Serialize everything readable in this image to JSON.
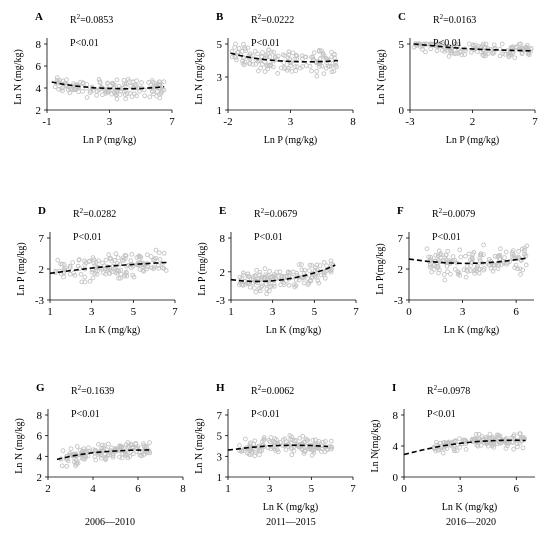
{
  "chart_data": [
    {
      "type": "scatter",
      "panel_letter": "A",
      "r2": "R²=0.0853",
      "r2_base": "R",
      "r2_sup": "2",
      "r2_value": "=0.0853",
      "p": "P<0.01",
      "xlabel": "Ln P (mg/kg)",
      "ylabel": "Ln  N (mg/kg)",
      "xlim": [
        -1,
        7
      ],
      "ylim": [
        2,
        8
      ],
      "xticks": [
        "-1",
        "3",
        "7"
      ],
      "yticks": [
        "2",
        "4",
        "6",
        "8"
      ],
      "xrange": [
        -0.7,
        6.5
      ],
      "ycenter": 4.0,
      "yspread": 0.55,
      "trend_x": [
        -0.7,
        0,
        1,
        2,
        3,
        4,
        5,
        6,
        6.5
      ],
      "trend_y": [
        4.55,
        4.35,
        4.15,
        4.02,
        3.96,
        3.93,
        3.95,
        4.05,
        4.12
      ]
    },
    {
      "type": "scatter",
      "panel_letter": "B",
      "r2": "R²=0.0222",
      "r2_base": "R",
      "r2_sup": "2",
      "r2_value": "=0.0222",
      "p": "P<0.01",
      "xlabel": "Ln P (mg/kg)",
      "ylabel": "Ln  N (mg/kg)",
      "xlim": [
        -2,
        8
      ],
      "ylim": [
        1,
        5
      ],
      "xticks": [
        "-2",
        "3",
        "8"
      ],
      "yticks": [
        "1",
        "3",
        "5"
      ],
      "xrange": [
        -1.8,
        6.8
      ],
      "ycenter": 3.9,
      "yspread": 0.5,
      "trend_x": [
        -1.8,
        -1,
        0,
        1,
        2,
        3,
        4,
        5,
        6,
        6.8
      ],
      "trend_y": [
        4.45,
        4.3,
        4.15,
        4.05,
        3.98,
        3.94,
        3.92,
        3.92,
        3.95,
        4.0
      ]
    },
    {
      "type": "scatter",
      "panel_letter": "C",
      "r2": "R²=0.0163",
      "r2_base": "R",
      "r2_sup": "2",
      "r2_value": "=0.0163",
      "p": "P<0.01",
      "xlabel": "Ln P (mg/kg)",
      "ylabel": "Ln  N (mg/kg)",
      "xlim": [
        -3,
        7
      ],
      "ylim": [
        0,
        5
      ],
      "xticks": [
        "-3",
        "2",
        "7"
      ],
      "yticks": [
        "0",
        "5"
      ],
      "xrange": [
        -2.7,
        6.7
      ],
      "ycenter": 4.6,
      "yspread": 0.4,
      "trend_x": [
        -2.7,
        -1,
        0,
        1,
        2,
        3,
        4,
        5,
        6,
        6.7
      ],
      "trend_y": [
        5.0,
        4.85,
        4.75,
        4.68,
        4.62,
        4.58,
        4.55,
        4.52,
        4.5,
        4.48
      ]
    },
    {
      "type": "scatter",
      "panel_letter": "D",
      "r2": "R²=0.0282",
      "r2_base": "R",
      "r2_sup": "2",
      "r2_value": "=0.0282",
      "p": "P<0.01",
      "xlabel": "Ln K (mg/kg)",
      "ylabel": "Ln P (mg/kg)",
      "xlim": [
        1,
        7
      ],
      "ylim": [
        -3,
        7
      ],
      "xticks": [
        "1",
        "3",
        "5",
        "7"
      ],
      "yticks": [
        "-3",
        "2",
        "7"
      ],
      "xrange": [
        1.2,
        6.6
      ],
      "ycenter": 2.8,
      "yspread": 1.5,
      "trend_x": [
        1.0,
        2,
        3,
        4,
        5,
        6,
        6.6
      ],
      "trend_y": [
        1.3,
        1.75,
        2.15,
        2.5,
        2.75,
        2.95,
        3.05
      ]
    },
    {
      "type": "scatter",
      "panel_letter": "E",
      "r2": "R²=0.0679",
      "r2_base": "R",
      "r2_sup": "2",
      "r2_value": "=0.0679",
      "p": "P<0.01",
      "xlabel": "Ln K (mg/kg)",
      "ylabel": "Ln P (mg/kg)",
      "xlim": [
        1,
        7
      ],
      "ylim": [
        -3,
        8
      ],
      "xticks": [
        "1",
        "3",
        "5",
        "7"
      ],
      "yticks": [
        "-3",
        "2",
        "8"
      ],
      "xrange": [
        1.4,
        6.0
      ],
      "ycenter": 1.6,
      "yspread": 1.3,
      "trend_x": [
        1.0,
        1.5,
        2,
        2.5,
        3,
        3.5,
        4,
        4.5,
        5,
        5.5,
        6.0
      ],
      "trend_y": [
        0.6,
        0.4,
        0.3,
        0.3,
        0.4,
        0.6,
        0.9,
        1.3,
        1.8,
        2.4,
        3.2
      ]
    },
    {
      "type": "scatter",
      "panel_letter": "F",
      "r2": "R²=0.0079",
      "r2_base": "R",
      "r2_sup": "2",
      "r2_value": "=0.0079",
      "p": "P<0.01",
      "xlabel": "Ln K (mg/kg)",
      "ylabel": "Ln P(mg/kg)",
      "xlim": [
        0,
        7
      ],
      "ylim": [
        -3,
        7
      ],
      "xticks": [
        "0",
        "3",
        "6"
      ],
      "yticks": [
        "-3",
        "2",
        "7"
      ],
      "xrange": [
        1.0,
        6.6
      ],
      "ycenter": 2.8,
      "yspread": 1.6,
      "trend_x": [
        0,
        1,
        2,
        3,
        4,
        5,
        6,
        6.6
      ],
      "trend_y": [
        3.6,
        3.25,
        3.0,
        2.9,
        2.95,
        3.15,
        3.5,
        3.75
      ]
    },
    {
      "type": "scatter",
      "panel_letter": "G",
      "r2": "R²=0.1639",
      "r2_base": "R",
      "r2_sup": "2",
      "r2_value": "=0.1639",
      "p": "P<0.01",
      "xlabel": "",
      "ylabel": "Ln N (mg/kg)",
      "xlim": [
        2,
        8
      ],
      "ylim": [
        2,
        8
      ],
      "xticks": [
        "2",
        "4",
        "6",
        "8"
      ],
      "yticks": [
        "2",
        "4",
        "6",
        "8"
      ],
      "xrange": [
        2.4,
        6.6
      ],
      "ycenter": 4.2,
      "yspread": 0.55,
      "trend_x": [
        2.4,
        3,
        3.5,
        4,
        4.5,
        5,
        5.5,
        6,
        6.6
      ],
      "trend_y": [
        3.7,
        4.0,
        4.2,
        4.35,
        4.45,
        4.52,
        4.57,
        4.6,
        4.62
      ]
    },
    {
      "type": "scatter",
      "panel_letter": "H",
      "r2": "R²=0.0062",
      "r2_base": "R",
      "r2_sup": "2",
      "r2_value": "=0.0062",
      "p": "P<0.01",
      "xlabel": "Ln K (mg/kg)",
      "ylabel": "Ln  N (mg/kg)",
      "xlim": [
        1,
        7
      ],
      "ylim": [
        1,
        7
      ],
      "xticks": [
        "1",
        "3",
        "5",
        "7"
      ],
      "yticks": [
        "1",
        "3",
        "5",
        "7"
      ],
      "xrange": [
        1.5,
        6.0
      ],
      "ycenter": 4.0,
      "yspread": 0.6,
      "trend_x": [
        1.0,
        2,
        3,
        4,
        5,
        5.8
      ],
      "trend_y": [
        3.6,
        3.85,
        4.02,
        4.08,
        4.05,
        3.95
      ]
    },
    {
      "type": "scatter",
      "panel_letter": "I",
      "r2": "R²=0.0978",
      "r2_base": "R",
      "r2_sup": "2",
      "r2_value": "=0.0978",
      "p": "P<0.01",
      "xlabel": "Ln K (mg/kg)",
      "ylabel": "Ln N(mg/kg)",
      "xlim": [
        0,
        7
      ],
      "ylim": [
        0,
        8
      ],
      "xticks": [
        "0",
        "3",
        "6"
      ],
      "yticks": [
        "0",
        "4",
        "8"
      ],
      "xrange": [
        1.5,
        6.5
      ],
      "ycenter": 4.6,
      "yspread": 0.6,
      "trend_x": [
        0,
        1,
        2,
        3,
        4,
        5,
        6,
        6.5
      ],
      "trend_y": [
        2.9,
        3.5,
        4.0,
        4.35,
        4.6,
        4.72,
        4.75,
        4.7
      ]
    }
  ],
  "period_labels": [
    "2006—2010",
    "2011—2015",
    "2016—2020"
  ],
  "colors": {
    "points": "#c4c4c4",
    "trend": "#000000",
    "axis": "#000000"
  }
}
